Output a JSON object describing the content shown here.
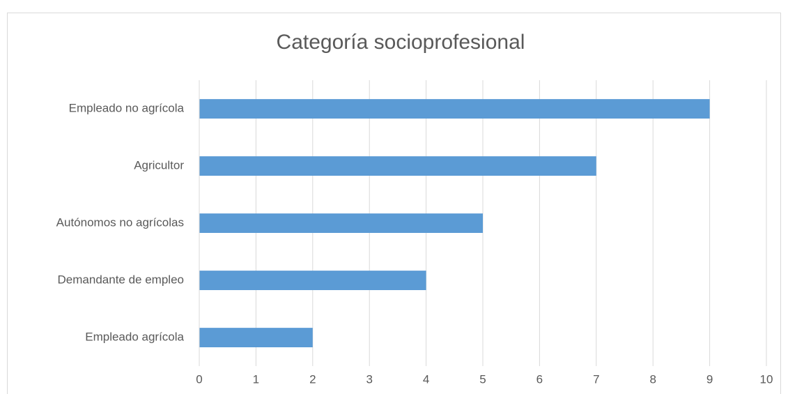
{
  "chart_data": {
    "type": "bar",
    "orientation": "horizontal",
    "title": "Categoría socioprofesional",
    "categories": [
      "Empleado no agrícola",
      "Agricultor",
      "Autónomos no agrícolas",
      "Demandante de empleo",
      "Empleado agrícola"
    ],
    "values": [
      9,
      7,
      5,
      4,
      2
    ],
    "color": "#5b9bd5",
    "xlim": [
      0,
      10
    ],
    "xticks": [
      0,
      1,
      2,
      3,
      4,
      5,
      6,
      7,
      8,
      9,
      10
    ],
    "grid": true
  }
}
